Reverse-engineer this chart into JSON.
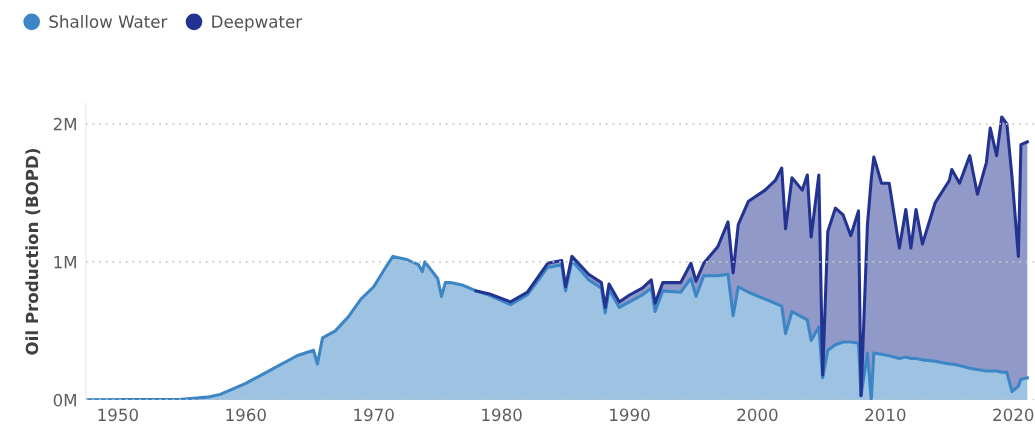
{
  "chart_data": {
    "type": "area",
    "stacked": true,
    "ylabel": "Oil Production (BOPD)",
    "x": [
      1947.5,
      1955,
      1957,
      1958,
      1960,
      1962,
      1964,
      1965.3,
      1965.6,
      1966,
      1967,
      1968,
      1969,
      1970,
      1971,
      1971.5,
      1972.5,
      1973.5,
      1973.8,
      1974,
      1975,
      1975.3,
      1975.6,
      1976,
      1977,
      1978,
      1979,
      1980.7,
      1982,
      1983.6,
      1984.7,
      1985,
      1985.5,
      1986.8,
      1987.8,
      1988.1,
      1988.4,
      1989.2,
      1990,
      1991,
      1991.7,
      1992,
      1992.6,
      1994,
      1994.8,
      1995.2,
      1995.8,
      1996.9,
      1997.7,
      1998.1,
      1998.5,
      1999.3,
      2000.6,
      2001.4,
      2001.9,
      2002.2,
      2002.7,
      2003.5,
      2003.9,
      2004.2,
      2004.8,
      2005.1,
      2005.5,
      2006.1,
      2006.7,
      2007.3,
      2007.9,
      2008.1,
      2008.6,
      2008.9,
      2009.1,
      2009.7,
      2010.3,
      2011.1,
      2011.6,
      2012,
      2012.4,
      2012.9,
      2013.9,
      2015,
      2015.2,
      2015.8,
      2016.6,
      2017.2,
      2017.9,
      2018.2,
      2018.7,
      2019.1,
      2019.5,
      2019.9,
      2020.4,
      2020.6,
      2021.1
    ],
    "series": [
      {
        "name": "Shallow Water",
        "color": "#3d86c6",
        "values": [
          0,
          5000,
          20000,
          40000,
          120000,
          220000,
          320000,
          360000,
          260000,
          450000,
          500000,
          600000,
          730000,
          820000,
          970000,
          1040000,
          1020000,
          980000,
          930000,
          1000000,
          880000,
          750000,
          850000,
          850000,
          830000,
          790000,
          760000,
          690000,
          760000,
          960000,
          980000,
          790000,
          1010000,
          870000,
          810000,
          630000,
          800000,
          670000,
          710000,
          760000,
          810000,
          640000,
          790000,
          780000,
          880000,
          750000,
          900000,
          900000,
          910000,
          610000,
          820000,
          780000,
          730000,
          700000,
          680000,
          480000,
          640000,
          600000,
          580000,
          430000,
          530000,
          160000,
          360000,
          400000,
          420000,
          420000,
          410000,
          30000,
          340000,
          0,
          340000,
          330000,
          320000,
          300000,
          310000,
          300000,
          300000,
          290000,
          280000,
          260000,
          260000,
          250000,
          230000,
          220000,
          210000,
          210000,
          210000,
          200000,
          200000,
          60000,
          100000,
          150000,
          160000
        ]
      },
      {
        "name": "Deepwater",
        "color": "#233391",
        "values": [
          null,
          null,
          null,
          null,
          null,
          null,
          null,
          null,
          null,
          null,
          null,
          null,
          null,
          null,
          null,
          null,
          null,
          null,
          null,
          null,
          null,
          null,
          null,
          null,
          null,
          0,
          10000,
          20000,
          20000,
          30000,
          30000,
          30000,
          30000,
          40000,
          40000,
          40000,
          40000,
          40000,
          50000,
          50000,
          60000,
          60000,
          60000,
          70000,
          110000,
          110000,
          90000,
          210000,
          380000,
          310000,
          450000,
          660000,
          790000,
          890000,
          1000000,
          760000,
          970000,
          920000,
          1050000,
          750000,
          1100000,
          20000,
          860000,
          990000,
          920000,
          770000,
          960000,
          0,
          930000,
          1600000,
          1420000,
          1240000,
          1250000,
          800000,
          1070000,
          800000,
          1080000,
          840000,
          1150000,
          1330000,
          1410000,
          1320000,
          1540000,
          1270000,
          1510000,
          1760000,
          1560000,
          1850000,
          1800000,
          1560000,
          940000,
          1700000,
          1710000
        ]
      }
    ],
    "xlim": [
      1947.5,
      2021.7
    ],
    "xticks": [
      1950,
      1960,
      1970,
      1980,
      1990,
      2000,
      2010,
      2020
    ],
    "ylim": [
      0,
      2150000
    ],
    "yticks": [
      {
        "value": 0,
        "label": "0M"
      },
      {
        "value": 1000000,
        "label": "1M"
      },
      {
        "value": 2000000,
        "label": "2M"
      }
    ],
    "grid": "y",
    "legend": "top left"
  }
}
